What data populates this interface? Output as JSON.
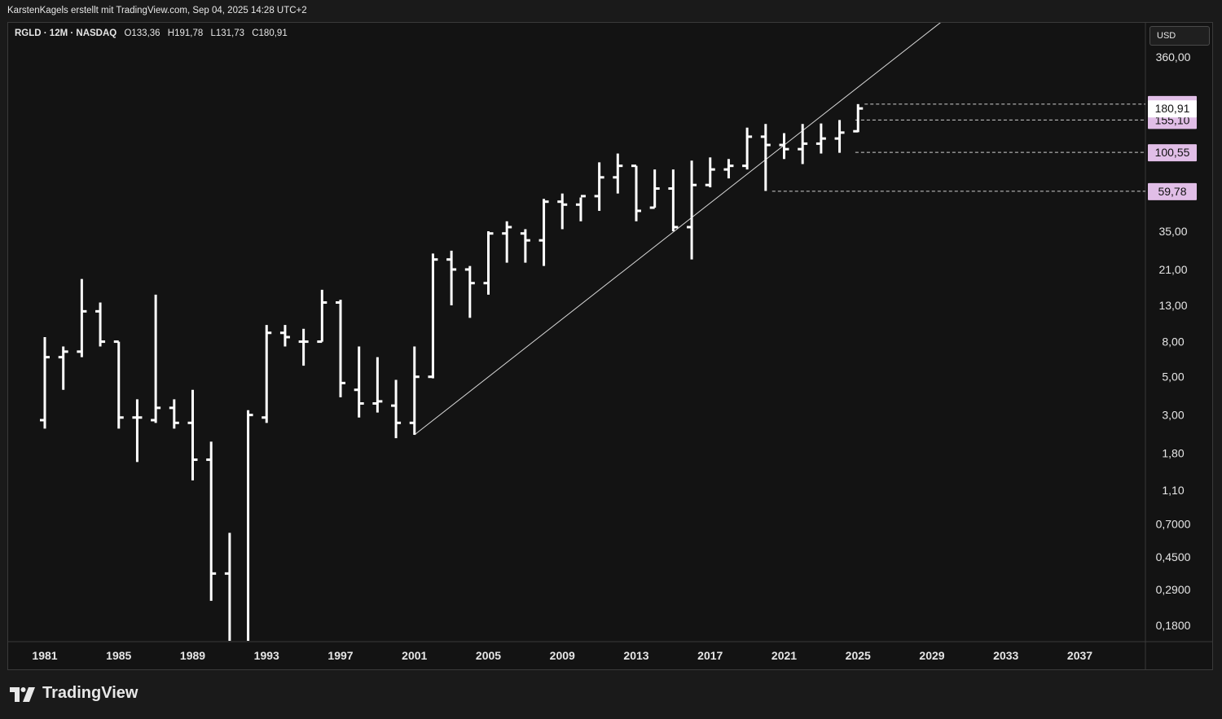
{
  "header": {
    "attribution": "KarstenKagels erstellt mit TradingView.com, Sep 04, 2025 14:28 UTC+2"
  },
  "legend": {
    "symbol": "RGLD · 12M · NASDAQ",
    "open": "O133,36",
    "high": "H191,78",
    "low": "L131,73",
    "close": "C180,91"
  },
  "currency_button": {
    "label": "USD"
  },
  "brand": {
    "name": "TradingView",
    "logo_icon": "tradingview-logo-icon"
  },
  "colors": {
    "background": "#131313",
    "bars": "#ffffff",
    "price_tag": "#e1bee7",
    "current_tag": "#ffffff",
    "grid_text": "#e6e6e6"
  },
  "chart_data": {
    "type": "ohlc",
    "scale": "log",
    "interval": "12M",
    "grid": false,
    "xlim": [
      1979.5,
      2040.5
    ],
    "ylim": [
      0.14,
      500
    ],
    "x_ticks": [
      "1981",
      "1985",
      "1989",
      "1993",
      "1997",
      "2001",
      "2005",
      "2009",
      "2013",
      "2017",
      "2021",
      "2025",
      "2029",
      "2033",
      "2037"
    ],
    "y_ticks": [
      {
        "value": 360,
        "label": "360,00"
      },
      {
        "value": 35,
        "label": "35,00"
      },
      {
        "value": 21,
        "label": "21,00"
      },
      {
        "value": 13,
        "label": "13,00"
      },
      {
        "value": 8,
        "label": "8,00"
      },
      {
        "value": 5,
        "label": "5,00"
      },
      {
        "value": 3,
        "label": "3,00"
      },
      {
        "value": 1.8,
        "label": "1,80"
      },
      {
        "value": 1.1,
        "label": "1,10"
      },
      {
        "value": 0.7,
        "label": "0,7000"
      },
      {
        "value": 0.45,
        "label": "0,4500"
      },
      {
        "value": 0.29,
        "label": "0,2900"
      },
      {
        "value": 0.18,
        "label": "0,1800"
      }
    ],
    "bars": [
      {
        "year": 1981,
        "o": 2.8,
        "h": 8.5,
        "l": 2.5,
        "c": 6.5
      },
      {
        "year": 1982,
        "o": 6.5,
        "h": 7.5,
        "l": 4.2,
        "c": 7.0
      },
      {
        "year": 1983,
        "o": 7.0,
        "h": 18.5,
        "l": 6.5,
        "c": 12.0
      },
      {
        "year": 1984,
        "o": 12.0,
        "h": 13.5,
        "l": 7.5,
        "c": 8.0
      },
      {
        "year": 1985,
        "o": 8.0,
        "h": 8.0,
        "l": 2.5,
        "c": 2.9
      },
      {
        "year": 1986,
        "o": 2.9,
        "h": 3.7,
        "l": 1.6,
        "c": 2.9
      },
      {
        "year": 1987,
        "o": 2.8,
        "h": 15.0,
        "l": 2.7,
        "c": 3.3
      },
      {
        "year": 1988,
        "o": 3.3,
        "h": 3.7,
        "l": 2.5,
        "c": 2.7
      },
      {
        "year": 1989,
        "o": 2.7,
        "h": 4.2,
        "l": 1.25,
        "c": 1.65
      },
      {
        "year": 1990,
        "o": 1.65,
        "h": 2.1,
        "l": 0.25,
        "c": 0.36
      },
      {
        "year": 1991,
        "o": 0.36,
        "h": 0.62,
        "l": 0.14,
        "c": 0.14
      },
      {
        "year": 1992,
        "o": 0.14,
        "h": 3.2,
        "l": 0.14,
        "c": 3.0
      },
      {
        "year": 1993,
        "o": 2.9,
        "h": 10.0,
        "l": 2.7,
        "c": 9.0
      },
      {
        "year": 1994,
        "o": 9.0,
        "h": 10.0,
        "l": 7.5,
        "c": 8.5
      },
      {
        "year": 1995,
        "o": 8.0,
        "h": 9.5,
        "l": 5.8,
        "c": 8.0
      },
      {
        "year": 1996,
        "o": 8.0,
        "h": 16.0,
        "l": 8.0,
        "c": 13.5
      },
      {
        "year": 1997,
        "o": 13.5,
        "h": 14.0,
        "l": 3.8,
        "c": 4.6
      },
      {
        "year": 1998,
        "o": 4.2,
        "h": 7.5,
        "l": 2.9,
        "c": 3.5
      },
      {
        "year": 1999,
        "o": 3.5,
        "h": 6.5,
        "l": 3.1,
        "c": 3.6
      },
      {
        "year": 2000,
        "o": 3.4,
        "h": 4.8,
        "l": 2.2,
        "c": 2.7
      },
      {
        "year": 2001,
        "o": 2.7,
        "h": 7.5,
        "l": 2.3,
        "c": 5.0
      },
      {
        "year": 2002,
        "o": 5.0,
        "h": 26.0,
        "l": 4.9,
        "c": 24.0
      },
      {
        "year": 2003,
        "o": 24.0,
        "h": 27.0,
        "l": 13.0,
        "c": 21.0
      },
      {
        "year": 2004,
        "o": 21.0,
        "h": 22.0,
        "l": 11.0,
        "c": 17.5
      },
      {
        "year": 2005,
        "o": 17.5,
        "h": 35.0,
        "l": 15.0,
        "c": 34.0
      },
      {
        "year": 2006,
        "o": 34.0,
        "h": 40.0,
        "l": 23.0,
        "c": 37.0
      },
      {
        "year": 2007,
        "o": 34.0,
        "h": 36.0,
        "l": 23.0,
        "c": 31.0
      },
      {
        "year": 2008,
        "o": 31.0,
        "h": 54.0,
        "l": 22.0,
        "c": 52.0
      },
      {
        "year": 2009,
        "o": 52.0,
        "h": 58.0,
        "l": 36.0,
        "c": 50.0
      },
      {
        "year": 2010,
        "o": 50.0,
        "h": 55.0,
        "l": 40.0,
        "c": 56.0
      },
      {
        "year": 2011,
        "o": 56.0,
        "h": 88.0,
        "l": 46.0,
        "c": 72.0
      },
      {
        "year": 2012,
        "o": 72.0,
        "h": 99.0,
        "l": 58.0,
        "c": 84.0
      },
      {
        "year": 2013,
        "o": 84.0,
        "h": 84.0,
        "l": 40.0,
        "c": 46.0
      },
      {
        "year": 2014,
        "o": 48.0,
        "h": 80.0,
        "l": 48.0,
        "c": 62.0
      },
      {
        "year": 2015,
        "o": 62.0,
        "h": 80.0,
        "l": 35.0,
        "c": 37.0
      },
      {
        "year": 2016,
        "o": 37.0,
        "h": 90.0,
        "l": 24.0,
        "c": 65.0
      },
      {
        "year": 2017,
        "o": 65.0,
        "h": 94.0,
        "l": 63.0,
        "c": 80.0
      },
      {
        "year": 2018,
        "o": 80.0,
        "h": 92.0,
        "l": 71.0,
        "c": 84.0
      },
      {
        "year": 2019,
        "o": 84.0,
        "h": 140.0,
        "l": 80.0,
        "c": 124.0
      },
      {
        "year": 2020,
        "o": 124.0,
        "h": 147.0,
        "l": 60.0,
        "c": 111.0
      },
      {
        "year": 2021,
        "o": 111.0,
        "h": 130.0,
        "l": 92.0,
        "c": 105.0
      },
      {
        "year": 2022,
        "o": 105.0,
        "h": 147.0,
        "l": 86.0,
        "c": 113.0
      },
      {
        "year": 2023,
        "o": 113.0,
        "h": 148.0,
        "l": 99.0,
        "c": 121.0
      },
      {
        "year": 2024,
        "o": 121.0,
        "h": 155.0,
        "l": 100.0,
        "c": 131.0
      },
      {
        "year": 2025,
        "o": 133.36,
        "h": 191.78,
        "l": 131.73,
        "c": 180.91
      }
    ],
    "trendline": {
      "from": {
        "year": 2001,
        "value": 2.3
      },
      "to": {
        "year": 2029.5,
        "value": 575
      }
    },
    "horizontal_levels": [
      {
        "value": 191.78,
        "label": "191,78",
        "from_year": 2025,
        "style": "dashed"
      },
      {
        "value": 155.1,
        "label": "155,10",
        "from_year": 2024.5,
        "style": "dashed"
      },
      {
        "value": 100.55,
        "label": "100,55",
        "from_year": 2024.5,
        "style": "dashed"
      },
      {
        "value": 59.78,
        "label": "59,78",
        "from_year": 2020,
        "style": "dashed"
      }
    ],
    "current_price": {
      "value": 180.91,
      "label": "180,91"
    }
  }
}
